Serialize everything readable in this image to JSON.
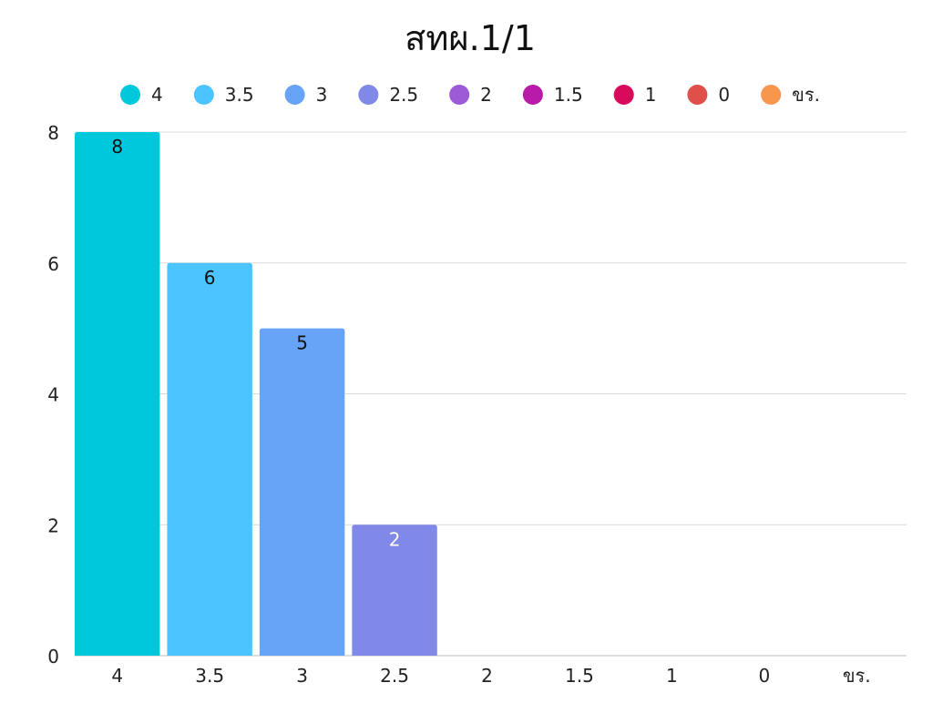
{
  "chart_data": {
    "type": "bar",
    "title": "สทผ.1/1",
    "categories": [
      "4",
      "3.5",
      "3",
      "2.5",
      "2",
      "1.5",
      "1",
      "0",
      "ขร."
    ],
    "values": [
      8,
      6,
      5,
      2,
      0,
      0,
      0,
      0,
      0
    ],
    "colors": [
      "#00c8dc",
      "#4bc4ff",
      "#67a4f8",
      "#8088e8",
      "#9c5ad6",
      "#b81aaa",
      "#d80a5c",
      "#e0504a",
      "#f8964e"
    ],
    "data_label_colors": [
      "#111111",
      "#111111",
      "#111111",
      "#ffffff"
    ],
    "ylim": [
      0,
      8
    ],
    "yticks": [
      0,
      2,
      4,
      6,
      8
    ],
    "xlabel": "",
    "ylabel": "",
    "grid": true,
    "legend_position": "top"
  }
}
